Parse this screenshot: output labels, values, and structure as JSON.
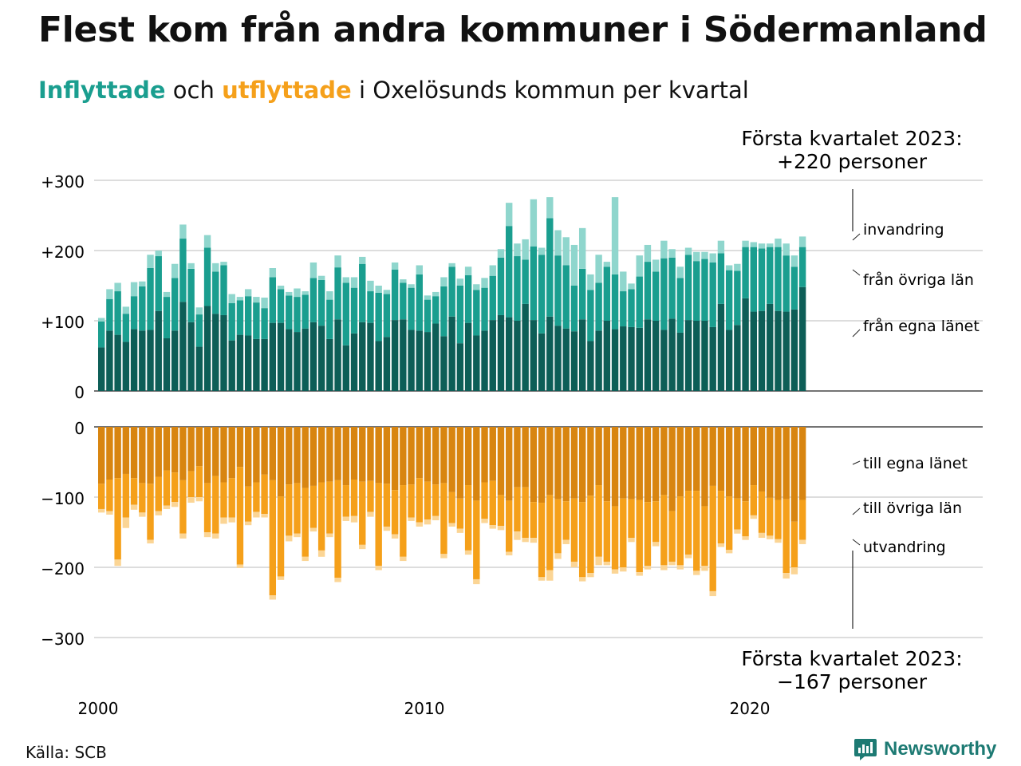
{
  "title": "Flest kom från andra kommuner i Södermanland",
  "subtitle": {
    "in_word": "Inflyttade",
    "mid": "och",
    "out_word": "utflyttade",
    "rest": "i Oxelösunds kommun per kvartal"
  },
  "source": "Källa: SCB",
  "brand": "Newsworthy",
  "colors": {
    "in_egna": "#0d5e57",
    "in_ovriga": "#1a9e8f",
    "in_invandring": "#8fd6cd",
    "out_egna": "#d88510",
    "out_ovriga": "#f5a01a",
    "out_utvandring": "#fbd595",
    "grid": "#dddddd",
    "brand": "#1d7a73"
  },
  "chart_data": [
    {
      "type": "bar",
      "stacked": true,
      "panel": "inflyttade",
      "x_start": 2000,
      "x_tick_labels": [
        "2000",
        "2010",
        "2020"
      ],
      "y_tick_labels": [
        "+300",
        "+200",
        "+100",
        "0"
      ],
      "ylim": [
        0,
        300
      ],
      "grid": true,
      "series": [
        {
          "name": "från egna länet",
          "values": [
            62,
            86,
            80,
            70,
            88,
            86,
            87,
            114,
            75,
            86,
            127,
            98,
            63,
            121,
            110,
            108,
            72,
            80,
            79,
            74,
            74,
            97,
            97,
            88,
            84,
            89,
            98,
            93,
            74,
            102,
            65,
            82,
            98,
            97,
            71,
            77,
            101,
            102,
            87,
            86,
            84,
            96,
            78,
            106,
            68,
            97,
            79,
            86,
            101,
            108,
            105,
            100,
            124,
            101,
            82,
            106,
            93,
            89,
            85,
            102,
            71,
            86,
            100,
            88,
            92,
            91,
            90,
            102,
            100,
            87,
            103,
            83,
            101,
            100,
            100,
            91,
            124,
            87,
            94,
            132,
            113,
            114,
            124,
            114,
            113,
            116,
            148
          ]
        },
        {
          "name": "från övriga län",
          "values": [
            37,
            45,
            62,
            40,
            47,
            63,
            88,
            78,
            59,
            75,
            90,
            76,
            46,
            83,
            60,
            71,
            53,
            49,
            56,
            52,
            44,
            65,
            48,
            48,
            50,
            48,
            63,
            65,
            56,
            74,
            89,
            65,
            83,
            45,
            69,
            61,
            72,
            52,
            60,
            80,
            46,
            39,
            71,
            71,
            82,
            68,
            65,
            61,
            63,
            82,
            130,
            92,
            63,
            105,
            112,
            140,
            100,
            90,
            65,
            72,
            73,
            68,
            77,
            78,
            50,
            54,
            73,
            82,
            70,
            102,
            87,
            78,
            93,
            85,
            88,
            92,
            72,
            85,
            77,
            73,
            92,
            89,
            81,
            91,
            80,
            61,
            57
          ]
        },
        {
          "name": "invandring",
          "values": [
            5,
            14,
            12,
            10,
            20,
            7,
            19,
            8,
            7,
            20,
            20,
            8,
            10,
            18,
            12,
            5,
            13,
            5,
            10,
            8,
            15,
            13,
            5,
            5,
            12,
            5,
            22,
            6,
            12,
            17,
            8,
            15,
            10,
            15,
            10,
            6,
            10,
            5,
            5,
            13,
            6,
            6,
            13,
            5,
            10,
            12,
            8,
            14,
            15,
            12,
            33,
            18,
            29,
            67,
            10,
            30,
            36,
            40,
            58,
            58,
            22,
            40,
            7,
            110,
            28,
            8,
            30,
            24,
            17,
            25,
            12,
            16,
            10,
            13,
            10,
            13,
            18,
            7,
            10,
            9,
            7,
            7,
            5,
            12,
            17,
            16,
            15
          ]
        }
      ]
    },
    {
      "type": "bar",
      "stacked": true,
      "panel": "utflyttade",
      "x_start": 2000,
      "x_tick_labels": [
        "2000",
        "2010",
        "2020"
      ],
      "y_tick_labels": [
        "0",
        "−100",
        "−200",
        "−300"
      ],
      "ylim": [
        -300,
        0
      ],
      "grid": true,
      "series": [
        {
          "name": "till egna länet",
          "values": [
            -81,
            -75,
            -73,
            -67,
            -73,
            -80,
            -81,
            -71,
            -62,
            -65,
            -76,
            -63,
            -56,
            -80,
            -70,
            -79,
            -73,
            -57,
            -85,
            -79,
            -68,
            -76,
            -99,
            -82,
            -80,
            -87,
            -84,
            -79,
            -78,
            -76,
            -83,
            -75,
            -78,
            -77,
            -80,
            -81,
            -90,
            -83,
            -82,
            -73,
            -78,
            -82,
            -80,
            -93,
            -102,
            -83,
            -105,
            -79,
            -77,
            -97,
            -105,
            -86,
            -86,
            -107,
            -108,
            -97,
            -103,
            -106,
            -102,
            -107,
            -98,
            -83,
            -106,
            -113,
            -102,
            -103,
            -104,
            -107,
            -106,
            -97,
            -120,
            -99,
            -91,
            -91,
            -113,
            -84,
            -91,
            -99,
            -102,
            -106,
            -83,
            -92,
            -101,
            -104,
            -103,
            -135,
            -104
          ]
        },
        {
          "name": "till övriga län",
          "values": [
            -36,
            -45,
            -116,
            -62,
            -38,
            -42,
            -80,
            -49,
            -50,
            -42,
            -76,
            -37,
            -44,
            -70,
            -82,
            -50,
            -56,
            -139,
            -50,
            -42,
            -56,
            -164,
            -114,
            -73,
            -72,
            -98,
            -60,
            -97,
            -74,
            -139,
            -45,
            -52,
            -90,
            -44,
            -118,
            -61,
            -63,
            -102,
            -47,
            -63,
            -54,
            -45,
            -101,
            -44,
            -43,
            -93,
            -112,
            -52,
            -63,
            -44,
            -73,
            -63,
            -72,
            -51,
            -106,
            -107,
            -77,
            -55,
            -90,
            -107,
            -110,
            -102,
            -86,
            -90,
            -98,
            -55,
            -103,
            -91,
            -58,
            -100,
            -72,
            -98,
            -91,
            -114,
            -85,
            -150,
            -75,
            -76,
            -44,
            -50,
            -43,
            -59,
            -54,
            -56,
            -105,
            -65,
            -57
          ]
        },
        {
          "name": "utvandring",
          "values": [
            -5,
            -5,
            -9,
            -15,
            -7,
            -6,
            -5,
            -6,
            -5,
            -7,
            -7,
            -8,
            -6,
            -7,
            -7,
            -9,
            -7,
            -5,
            -5,
            -8,
            -5,
            -6,
            -5,
            -8,
            -5,
            -6,
            -5,
            -9,
            -5,
            -6,
            -6,
            -9,
            -6,
            -7,
            -6,
            -6,
            -6,
            -6,
            -5,
            -6,
            -7,
            -6,
            -6,
            -5,
            -6,
            -6,
            -7,
            -6,
            -5,
            -6,
            -5,
            -12,
            -6,
            -7,
            -5,
            -15,
            -8,
            -6,
            -8,
            -6,
            -6,
            -12,
            -5,
            -6,
            -6,
            -6,
            -5,
            -5,
            -6,
            -7,
            -5,
            -6,
            -5,
            -6,
            -7,
            -7,
            -5,
            -5,
            -6,
            -5,
            -5,
            -7,
            -5,
            -5,
            -8,
            -10,
            -6
          ]
        }
      ]
    }
  ],
  "annotations": {
    "top": [
      "Första kvartalet 2023:",
      "+220 personer"
    ],
    "bottom": [
      "Första kvartalet 2023:",
      "−167 personer"
    ]
  }
}
